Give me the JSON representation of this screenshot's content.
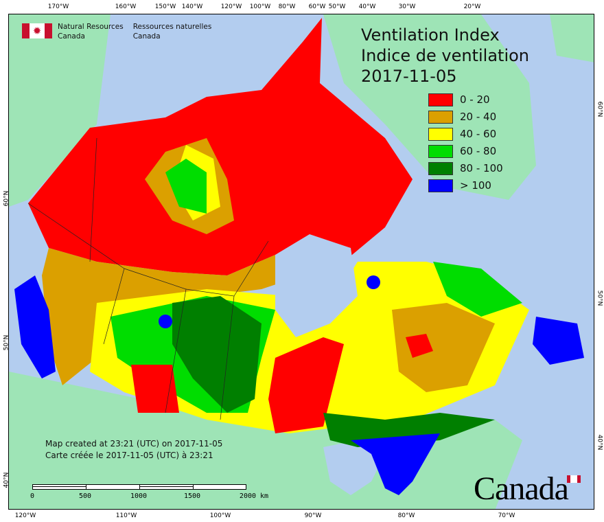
{
  "header": {
    "org_en_1": "Natural Resources",
    "org_en_2": "Canada",
    "org_fr_1": "Ressources naturelles",
    "org_fr_2": "Canada"
  },
  "title": {
    "line1": "Ventilation Index",
    "line2": "Indice de ventilation",
    "date": "2017-11-05"
  },
  "legend": [
    {
      "label": "0 - 20",
      "color": "#ff0000"
    },
    {
      "label": "20 - 40",
      "color": "#dba000"
    },
    {
      "label": "40 - 60",
      "color": "#ffff00"
    },
    {
      "label": "60 - 80",
      "color": "#00dd00"
    },
    {
      "label": "80 - 100",
      "color": "#007f00"
    },
    {
      "label": "> 100",
      "color": "#0000ff"
    }
  ],
  "credit": {
    "en": "Map created at 23:21 (UTC) on 2017-11-05",
    "fr": "Carte créée le 2017-11-05 (UTC) à 23:21"
  },
  "scale": {
    "labels": [
      "0",
      "500",
      "1000",
      "1500",
      "2000  km"
    ]
  },
  "ticks": {
    "top": [
      "170°W",
      "160°W",
      "150°W",
      "140°W",
      "120°W",
      "100°W",
      "80°W",
      "60°W",
      "50°W",
      "40°W",
      "30°W",
      "20°W"
    ],
    "bottom": [
      "120°W",
      "110°W",
      "100°W",
      "90°W",
      "80°W",
      "70°W"
    ],
    "left": [
      "60°N",
      "50°N",
      "40°N"
    ],
    "right": [
      "60°N",
      "50°N",
      "40°N"
    ]
  },
  "wordmark": "Canada",
  "colors": {
    "ocean": "#b3cdef",
    "land": "#9ee4b6",
    "flag_red": "#c8102e"
  }
}
